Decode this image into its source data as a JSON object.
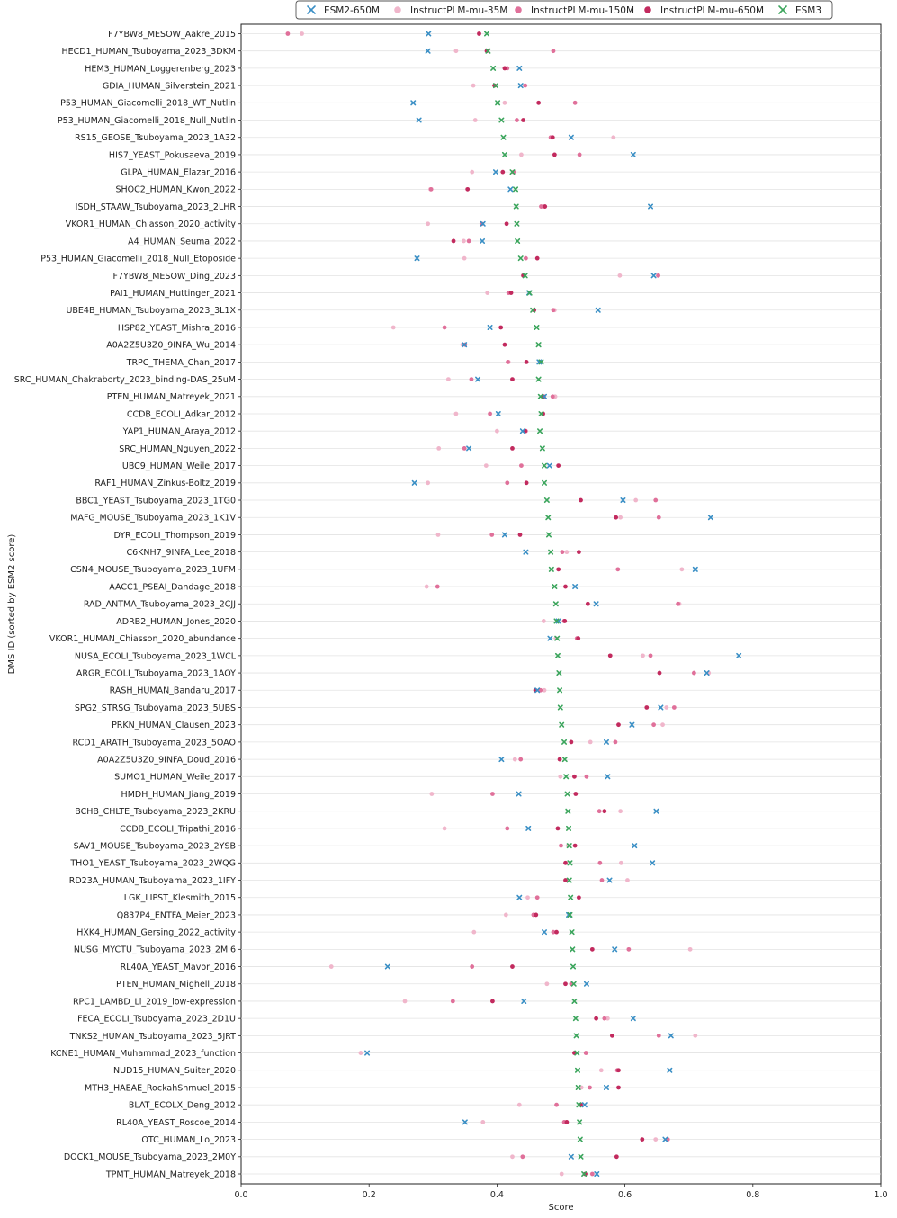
{
  "chart_data": {
    "type": "scatter",
    "xlabel": "Score",
    "ylabel": "DMS ID (sorted by ESM2 score)",
    "xlim": [
      0.0,
      1.0
    ],
    "xticks": [
      "0.0",
      "0.2",
      "0.4",
      "0.6",
      "0.8",
      "1.0"
    ],
    "grid": "horizontal",
    "legend_position": "top",
    "series_order": [
      "ESM2-650M",
      "InstructPLM-mu-35M",
      "InstructPLM-mu-150M",
      "InstructPLM-mu-650M",
      "ESM3"
    ],
    "series_style": {
      "ESM2-650M": {
        "marker": "x",
        "color": "#3a8fc5"
      },
      "InstructPLM-mu-35M": {
        "marker": "dot",
        "color": "#f0b6cb"
      },
      "InstructPLM-mu-150M": {
        "marker": "dot",
        "color": "#e0709a"
      },
      "InstructPLM-mu-650M": {
        "marker": "dot",
        "color": "#c22a5e"
      },
      "ESM3": {
        "marker": "x",
        "color": "#3ba55c"
      }
    },
    "categories": [
      "F7YBW8_MESOW_Aakre_2015",
      "HECD1_HUMAN_Tsuboyama_2023_3DKM",
      "HEM3_HUMAN_Loggerenberg_2023",
      "GDIA_HUMAN_Silverstein_2021",
      "P53_HUMAN_Giacomelli_2018_WT_Nutlin",
      "P53_HUMAN_Giacomelli_2018_Null_Nutlin",
      "RS15_GEOSE_Tsuboyama_2023_1A32",
      "HIS7_YEAST_Pokusaeva_2019",
      "GLPA_HUMAN_Elazar_2016",
      "SHOC2_HUMAN_Kwon_2022",
      "ISDH_STAAW_Tsuboyama_2023_2LHR",
      "VKOR1_HUMAN_Chiasson_2020_activity",
      "A4_HUMAN_Seuma_2022",
      "P53_HUMAN_Giacomelli_2018_Null_Etoposide",
      "F7YBW8_MESOW_Ding_2023",
      "PAI1_HUMAN_Huttinger_2021",
      "UBE4B_HUMAN_Tsuboyama_2023_3L1X",
      "HSP82_YEAST_Mishra_2016",
      "A0A2Z5U3Z0_9INFA_Wu_2014",
      "TRPC_THEMA_Chan_2017",
      "SRC_HUMAN_Chakraborty_2023_binding-DAS_25uM",
      "PTEN_HUMAN_Matreyek_2021",
      "CCDB_ECOLI_Adkar_2012",
      "YAP1_HUMAN_Araya_2012",
      "SRC_HUMAN_Nguyen_2022",
      "UBC9_HUMAN_Weile_2017",
      "RAF1_HUMAN_Zinkus-Boltz_2019",
      "BBC1_YEAST_Tsuboyama_2023_1TG0",
      "MAFG_MOUSE_Tsuboyama_2023_1K1V",
      "DYR_ECOLI_Thompson_2019",
      "C6KNH7_9INFA_Lee_2018",
      "CSN4_MOUSE_Tsuboyama_2023_1UFM",
      "AACC1_PSEAI_Dandage_2018",
      "RAD_ANTMA_Tsuboyama_2023_2CJJ",
      "ADRB2_HUMAN_Jones_2020",
      "VKOR1_HUMAN_Chiasson_2020_abundance",
      "NUSA_ECOLI_Tsuboyama_2023_1WCL",
      "ARGR_ECOLI_Tsuboyama_2023_1AOY",
      "RASH_HUMAN_Bandaru_2017",
      "SPG2_STRSG_Tsuboyama_2023_5UBS",
      "PRKN_HUMAN_Clausen_2023",
      "RCD1_ARATH_Tsuboyama_2023_5OAO",
      "A0A2Z5U3Z0_9INFA_Doud_2016",
      "SUMO1_HUMAN_Weile_2017",
      "HMDH_HUMAN_Jiang_2019",
      "BCHB_CHLTE_Tsuboyama_2023_2KRU",
      "CCDB_ECOLI_Tripathi_2016",
      "SAV1_MOUSE_Tsuboyama_2023_2YSB",
      "THO1_YEAST_Tsuboyama_2023_2WQG",
      "RD23A_HUMAN_Tsuboyama_2023_1IFY",
      "LGK_LIPST_Klesmith_2015",
      "Q837P4_ENTFA_Meier_2023",
      "HXK4_HUMAN_Gersing_2022_activity",
      "NUSG_MYCTU_Tsuboyama_2023_2MI6",
      "RL40A_YEAST_Mavor_2016",
      "PTEN_HUMAN_Mighell_2018",
      "RPC1_LAMBD_Li_2019_low-expression",
      "FECA_ECOLI_Tsuboyama_2023_2D1U",
      "TNKS2_HUMAN_Tsuboyama_2023_5JRT",
      "KCNE1_HUMAN_Muhammad_2023_function",
      "NUD15_HUMAN_Suiter_2020",
      "MTH3_HAEAE_RockahShmuel_2015",
      "BLAT_ECOLX_Deng_2012",
      "RL40A_YEAST_Roscoe_2014",
      "OTC_HUMAN_Lo_2023",
      "DOCK1_MOUSE_Tsuboyama_2023_2M0Y",
      "TPMT_HUMAN_Matreyek_2018"
    ],
    "series": [
      {
        "name": "ESM2-650M",
        "values": [
          0.293,
          0.292,
          0.435,
          0.437,
          0.269,
          0.278,
          0.516,
          0.613,
          0.398,
          0.421,
          0.64,
          0.378,
          0.377,
          0.275,
          0.645,
          0.45,
          0.558,
          0.389,
          0.349,
          0.466,
          0.37,
          0.474,
          0.402,
          0.44,
          0.356,
          0.482,
          0.271,
          0.597,
          0.734,
          0.412,
          0.445,
          0.71,
          0.522,
          0.555,
          0.496,
          0.483,
          0.778,
          0.728,
          0.463,
          0.656,
          0.611,
          0.571,
          0.407,
          0.573,
          0.434,
          0.649,
          0.449,
          0.615,
          0.643,
          0.576,
          0.435,
          0.512,
          0.474,
          0.584,
          0.229,
          0.54,
          0.442,
          0.613,
          0.672,
          0.197,
          0.67,
          0.571,
          0.537,
          0.35,
          0.663,
          0.516,
          0.556
        ]
      },
      {
        "name": "InstructPLM-mu-35M",
        "values": [
          0.095,
          0.336,
          0.412,
          0.363,
          0.412,
          0.366,
          0.582,
          0.438,
          0.361,
          0.296,
          0.474,
          0.292,
          0.348,
          0.349,
          0.592,
          0.385,
          0.49,
          0.238,
          0.346,
          0.418,
          0.324,
          0.491,
          0.336,
          0.4,
          0.309,
          0.383,
          0.292,
          0.617,
          0.593,
          0.308,
          0.509,
          0.689,
          0.29,
          0.685,
          0.473,
          0.492,
          0.628,
          0.731,
          0.474,
          0.665,
          0.659,
          0.546,
          0.428,
          0.499,
          0.298,
          0.593,
          0.318,
          0.511,
          0.594,
          0.604,
          0.448,
          0.414,
          0.364,
          0.702,
          0.141,
          0.478,
          0.256,
          0.573,
          0.71,
          0.187,
          0.563,
          0.532,
          0.435,
          0.378,
          0.648,
          0.424,
          0.501
        ]
      },
      {
        "name": "InstructPLM-mu-150M",
        "values": [
          0.073,
          0.488,
          0.416,
          0.444,
          0.522,
          0.431,
          0.484,
          0.529,
          0.426,
          0.297,
          0.469,
          0.376,
          0.356,
          0.445,
          0.652,
          0.418,
          0.488,
          0.318,
          0.35,
          0.417,
          0.36,
          0.487,
          0.389,
          0.445,
          0.349,
          0.438,
          0.416,
          0.648,
          0.653,
          0.392,
          0.502,
          0.589,
          0.307,
          0.683,
          0.505,
          0.525,
          0.64,
          0.708,
          0.468,
          0.677,
          0.645,
          0.585,
          0.437,
          0.54,
          0.393,
          0.56,
          0.416,
          0.5,
          0.561,
          0.564,
          0.463,
          0.457,
          0.488,
          0.606,
          0.361,
          0.516,
          0.331,
          0.568,
          0.653,
          0.539,
          0.588,
          0.545,
          0.493,
          0.505,
          0.667,
          0.44,
          0.549
        ]
      },
      {
        "name": "InstructPLM-mu-650M",
        "values": [
          0.372,
          0.384,
          0.412,
          0.396,
          0.465,
          0.441,
          0.487,
          0.49,
          0.409,
          0.354,
          0.475,
          0.415,
          0.332,
          0.463,
          0.441,
          0.422,
          0.458,
          0.406,
          0.412,
          0.446,
          0.424,
          0.473,
          0.472,
          0.444,
          0.424,
          0.496,
          0.446,
          0.531,
          0.586,
          0.436,
          0.528,
          0.496,
          0.507,
          0.542,
          0.506,
          0.527,
          0.577,
          0.654,
          0.46,
          0.634,
          0.59,
          0.516,
          0.498,
          0.521,
          0.523,
          0.568,
          0.495,
          0.522,
          0.507,
          0.507,
          0.528,
          0.461,
          0.493,
          0.549,
          0.424,
          0.507,
          0.393,
          0.555,
          0.58,
          0.521,
          0.59,
          0.59,
          0.531,
          0.509,
          0.627,
          0.587,
          0.538
        ]
      },
      {
        "name": "ESM3",
        "values": [
          0.384,
          0.386,
          0.394,
          0.398,
          0.401,
          0.407,
          0.41,
          0.412,
          0.424,
          0.429,
          0.43,
          0.431,
          0.432,
          0.437,
          0.444,
          0.451,
          0.456,
          0.462,
          0.465,
          0.469,
          0.465,
          0.468,
          0.469,
          0.467,
          0.471,
          0.474,
          0.474,
          0.478,
          0.48,
          0.481,
          0.484,
          0.485,
          0.49,
          0.492,
          0.493,
          0.494,
          0.495,
          0.497,
          0.498,
          0.499,
          0.501,
          0.505,
          0.506,
          0.508,
          0.51,
          0.511,
          0.512,
          0.513,
          0.514,
          0.513,
          0.515,
          0.514,
          0.517,
          0.518,
          0.519,
          0.52,
          0.521,
          0.523,
          0.524,
          0.525,
          0.526,
          0.527,
          0.528,
          0.529,
          0.53,
          0.531,
          0.536
        ]
      }
    ]
  }
}
